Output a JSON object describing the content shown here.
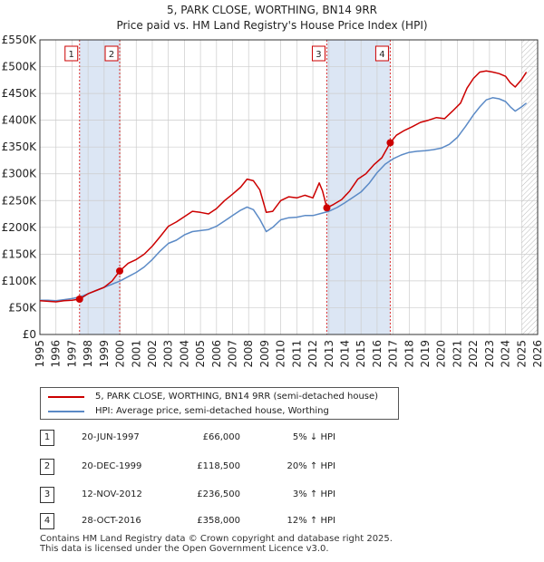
{
  "title": "5, PARK CLOSE, WORTHING, BN14 9RR",
  "subtitle": "Price paid vs. HM Land Registry's House Price Index (HPI)",
  "legend": {
    "items": [
      {
        "label": "5, PARK CLOSE, WORTHING, BN14 9RR (semi-detached house)",
        "color": "#cc0000"
      },
      {
        "label": "HPI: Average price, semi-detached house, Worthing",
        "color": "#5b8ac6"
      }
    ]
  },
  "transactions": [
    {
      "num": "1",
      "date": "20-JUN-1997",
      "price": "£66,000",
      "hpi": "5% ↓ HPI"
    },
    {
      "num": "2",
      "date": "20-DEC-1999",
      "price": "£118,500",
      "hpi": "20% ↑ HPI"
    },
    {
      "num": "3",
      "date": "12-NOV-2012",
      "price": "£236,500",
      "hpi": "3% ↑ HPI"
    },
    {
      "num": "4",
      "date": "28-OCT-2016",
      "price": "£358,000",
      "hpi": "12% ↑ HPI"
    }
  ],
  "footer": {
    "line1": "Contains HM Land Registry data © Crown copyright and database right 2025.",
    "line2": "This data is licensed under the Open Government Licence v3.0."
  },
  "chart_data": {
    "type": "line",
    "title": "5, PARK CLOSE, WORTHING, BN14 9RR",
    "subtitle": "Price paid vs. HM Land Registry's House Price Index (HPI)",
    "xlabel": "",
    "ylabel": "",
    "xlim": [
      1995,
      2026
    ],
    "ylim": [
      0,
      550000
    ],
    "xticks": [
      1995,
      1996,
      1997,
      1998,
      1999,
      2000,
      2001,
      2002,
      2003,
      2004,
      2005,
      2006,
      2007,
      2008,
      2009,
      2010,
      2011,
      2012,
      2013,
      2014,
      2015,
      2016,
      2017,
      2018,
      2019,
      2020,
      2021,
      2022,
      2023,
      2024,
      2025,
      2026
    ],
    "yticks": [
      0,
      50000,
      100000,
      150000,
      200000,
      250000,
      300000,
      350000,
      400000,
      450000,
      500000,
      550000
    ],
    "ytick_labels": [
      "£0",
      "£50K",
      "£100K",
      "£150K",
      "£200K",
      "£250K",
      "£300K",
      "£350K",
      "£400K",
      "£450K",
      "£500K",
      "£550K"
    ],
    "grid": true,
    "shaded_spans": [
      [
        1997.47,
        1999.97
      ],
      [
        2012.87,
        2016.82
      ]
    ],
    "hatched_from": 2025.0,
    "markers": [
      {
        "label": "1",
        "x": 1997.47,
        "y": 66000
      },
      {
        "label": "2",
        "x": 1999.97,
        "y": 118500
      },
      {
        "label": "3",
        "x": 2012.87,
        "y": 236500
      },
      {
        "label": "4",
        "x": 2016.82,
        "y": 358000
      }
    ],
    "series": [
      {
        "name": "5, PARK CLOSE, WORTHING, BN14 9RR (semi-detached house)",
        "color": "#cc0000",
        "x": [
          1995,
          1995.5,
          1996,
          1996.5,
          1997,
          1997.47,
          1998,
          1998.5,
          1999,
          1999.5,
          1999.97,
          2000.5,
          2001,
          2001.5,
          2002,
          2002.5,
          2003,
          2003.5,
          2004,
          2004.5,
          2005,
          2005.5,
          2006,
          2006.5,
          2007,
          2007.5,
          2007.9,
          2008.3,
          2008.7,
          2009.1,
          2009.5,
          2010,
          2010.5,
          2011,
          2011.5,
          2012,
          2012.4,
          2012.6,
          2012.87,
          2013.3,
          2013.8,
          2014.3,
          2014.8,
          2015.3,
          2015.8,
          2016.3,
          2016.82,
          2017.2,
          2017.7,
          2018.2,
          2018.7,
          2019.2,
          2019.7,
          2020.2,
          2020.7,
          2021.2,
          2021.6,
          2022,
          2022.4,
          2022.8,
          2023.2,
          2023.6,
          2024,
          2024.3,
          2024.6,
          2025,
          2025.3
        ],
        "y": [
          63000,
          62000,
          61000,
          63000,
          64000,
          66000,
          76000,
          82000,
          88000,
          100000,
          118500,
          133000,
          140000,
          150000,
          165000,
          183000,
          202000,
          210000,
          220000,
          230000,
          228000,
          225000,
          235000,
          250000,
          262000,
          275000,
          290000,
          287000,
          270000,
          228000,
          230000,
          250000,
          257000,
          255000,
          260000,
          255000,
          283000,
          268000,
          236500,
          243000,
          252000,
          268000,
          290000,
          300000,
          317000,
          330000,
          358000,
          372000,
          381000,
          388000,
          396000,
          400000,
          405000,
          403000,
          417000,
          432000,
          460000,
          478000,
          490000,
          492000,
          490000,
          487000,
          482000,
          470000,
          462000,
          476000,
          490000
        ]
      },
      {
        "name": "HPI: Average price, semi-detached house, Worthing",
        "color": "#5b8ac6",
        "x": [
          1995,
          1995.5,
          1996,
          1996.5,
          1997,
          1997.5,
          1998,
          1998.5,
          1999,
          1999.5,
          2000,
          2000.5,
          2001,
          2001.5,
          2002,
          2002.5,
          2003,
          2003.5,
          2004,
          2004.5,
          2005,
          2005.5,
          2006,
          2006.5,
          2007,
          2007.5,
          2007.9,
          2008.3,
          2008.7,
          2009.1,
          2009.5,
          2010,
          2010.5,
          2011,
          2011.5,
          2012,
          2012.5,
          2013,
          2013.5,
          2014,
          2014.5,
          2015,
          2015.5,
          2016,
          2016.5,
          2017,
          2017.5,
          2018,
          2018.5,
          2019,
          2019.5,
          2020,
          2020.5,
          2021,
          2021.5,
          2022,
          2022.4,
          2022.8,
          2023.2,
          2023.6,
          2024,
          2024.3,
          2024.6,
          2025,
          2025.3
        ],
        "y": [
          64000,
          64000,
          63000,
          65000,
          67000,
          70000,
          76000,
          82000,
          88000,
          94000,
          100000,
          108000,
          116000,
          126000,
          140000,
          156000,
          170000,
          176000,
          186000,
          192000,
          194000,
          196000,
          202000,
          212000,
          222000,
          232000,
          238000,
          233000,
          215000,
          192000,
          200000,
          214000,
          218000,
          219000,
          222000,
          222000,
          226000,
          230000,
          237000,
          246000,
          256000,
          266000,
          282000,
          302000,
          318000,
          328000,
          335000,
          340000,
          342000,
          343000,
          345000,
          348000,
          355000,
          368000,
          388000,
          410000,
          425000,
          438000,
          442000,
          440000,
          435000,
          425000,
          417000,
          425000,
          432000
        ]
      }
    ]
  }
}
